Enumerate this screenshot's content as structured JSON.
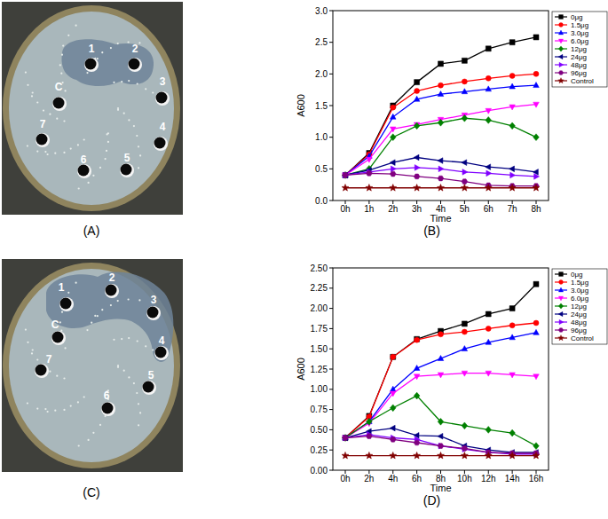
{
  "chart_data": [
    {
      "type": "line",
      "title": "(B)",
      "x_label": "Time",
      "y_label": "A600",
      "categories": [
        "0h",
        "1h",
        "2h",
        "3h",
        "4h",
        "5h",
        "6h",
        "7h",
        "8h"
      ],
      "ylim": [
        0,
        3
      ],
      "yticks": [
        {
          "value": 0,
          "label": "0.0"
        },
        {
          "value": 0.5,
          "label": "0.5"
        },
        {
          "value": 1,
          "label": "1.0"
        },
        {
          "value": 1.5,
          "label": "1.5"
        },
        {
          "value": 2,
          "label": "2.0"
        },
        {
          "value": 2.5,
          "label": "2.5"
        },
        {
          "value": 3,
          "label": "3.0"
        }
      ],
      "legend": "right",
      "series": [
        {
          "name": "0μg",
          "color": "#000000",
          "marker": "square",
          "values": [
            0.4,
            0.75,
            1.5,
            1.87,
            2.16,
            2.21,
            2.4,
            2.5,
            2.58
          ]
        },
        {
          "name": "1.5μg",
          "color": "#ff0000",
          "marker": "circle",
          "values": [
            0.4,
            0.73,
            1.47,
            1.73,
            1.82,
            1.88,
            1.93,
            1.97,
            2.0
          ]
        },
        {
          "name": "3.0μg",
          "color": "#0000ff",
          "marker": "triangle-up",
          "values": [
            0.4,
            0.7,
            1.32,
            1.6,
            1.68,
            1.72,
            1.76,
            1.8,
            1.82
          ]
        },
        {
          "name": "6.0μg",
          "color": "#ff00ff",
          "marker": "triangle-down",
          "values": [
            0.4,
            0.65,
            1.13,
            1.2,
            1.28,
            1.35,
            1.42,
            1.48,
            1.52
          ]
        },
        {
          "name": "12μg",
          "color": "#008000",
          "marker": "diamond",
          "values": [
            0.4,
            0.5,
            1.0,
            1.18,
            1.23,
            1.3,
            1.27,
            1.18,
            1.0
          ]
        },
        {
          "name": "24μg",
          "color": "#000080",
          "marker": "triangle-left",
          "values": [
            0.4,
            0.48,
            0.6,
            0.68,
            0.63,
            0.6,
            0.53,
            0.5,
            0.45
          ]
        },
        {
          "name": "48μg",
          "color": "#8000ff",
          "marker": "triangle-right",
          "values": [
            0.4,
            0.45,
            0.5,
            0.52,
            0.5,
            0.45,
            0.43,
            0.4,
            0.38
          ]
        },
        {
          "name": "96μg",
          "color": "#800080",
          "marker": "hexagon",
          "values": [
            0.4,
            0.43,
            0.42,
            0.38,
            0.35,
            0.3,
            0.24,
            0.23,
            0.23
          ]
        },
        {
          "name": "Control",
          "color": "#800000",
          "marker": "star",
          "values": [
            0.2,
            0.2,
            0.2,
            0.2,
            0.2,
            0.2,
            0.2,
            0.2,
            0.2
          ]
        }
      ]
    },
    {
      "type": "line",
      "title": "(D)",
      "x_label": "Time",
      "y_label": "A600",
      "categories": [
        "0h",
        "2h",
        "4h",
        "6h",
        "8h",
        "10h",
        "12h",
        "14h",
        "16h"
      ],
      "ylim": [
        0,
        2.5
      ],
      "yticks": [
        {
          "value": 0,
          "label": "0.00"
        },
        {
          "value": 0.25,
          "label": "0.25"
        },
        {
          "value": 0.5,
          "label": "0.50"
        },
        {
          "value": 0.75,
          "label": "0.75"
        },
        {
          "value": 1,
          "label": "1.00"
        },
        {
          "value": 1.25,
          "label": "1.25"
        },
        {
          "value": 1.5,
          "label": "1.50"
        },
        {
          "value": 1.75,
          "label": "1.75"
        },
        {
          "value": 2,
          "label": "2.00"
        },
        {
          "value": 2.25,
          "label": "2.25"
        },
        {
          "value": 2.5,
          "label": "2.50"
        }
      ],
      "legend": "right",
      "series": [
        {
          "name": "0μg",
          "color": "#000000",
          "marker": "square",
          "values": [
            0.4,
            0.67,
            1.4,
            1.62,
            1.72,
            1.81,
            1.93,
            2.0,
            2.3
          ]
        },
        {
          "name": "1.5μg",
          "color": "#ff0000",
          "marker": "circle",
          "values": [
            0.4,
            0.66,
            1.4,
            1.61,
            1.68,
            1.71,
            1.75,
            1.79,
            1.82
          ]
        },
        {
          "name": "3.0μg",
          "color": "#0000ff",
          "marker": "triangle-up",
          "values": [
            0.4,
            0.6,
            1.0,
            1.26,
            1.38,
            1.5,
            1.58,
            1.64,
            1.7
          ]
        },
        {
          "name": "6.0μg",
          "color": "#ff00ff",
          "marker": "triangle-down",
          "values": [
            0.4,
            0.58,
            0.95,
            1.16,
            1.18,
            1.2,
            1.2,
            1.18,
            1.16
          ]
        },
        {
          "name": "12μg",
          "color": "#008000",
          "marker": "diamond",
          "values": [
            0.4,
            0.6,
            0.77,
            0.92,
            0.6,
            0.55,
            0.5,
            0.46,
            0.3
          ]
        },
        {
          "name": "24μg",
          "color": "#000080",
          "marker": "triangle-left",
          "values": [
            0.4,
            0.48,
            0.52,
            0.43,
            0.42,
            0.3,
            0.25,
            0.22,
            0.22
          ]
        },
        {
          "name": "48μg",
          "color": "#8000ff",
          "marker": "triangle-right",
          "values": [
            0.4,
            0.44,
            0.4,
            0.38,
            0.3,
            0.26,
            0.22,
            0.2,
            0.2
          ]
        },
        {
          "name": "96μg",
          "color": "#800080",
          "marker": "hexagon",
          "values": [
            0.4,
            0.42,
            0.38,
            0.34,
            0.3,
            0.27,
            0.22,
            0.21,
            0.21
          ]
        },
        {
          "name": "Control",
          "color": "#800000",
          "marker": "star",
          "values": [
            0.18,
            0.18,
            0.18,
            0.18,
            0.18,
            0.18,
            0.18,
            0.18,
            0.18
          ]
        }
      ]
    }
  ],
  "plates": [
    {
      "label": "(A)",
      "wells": [
        "1",
        "2",
        "3",
        "C",
        "4",
        "5",
        "6",
        "7"
      ]
    },
    {
      "label": "(C)",
      "wells": [
        "1",
        "2",
        "3",
        "C",
        "4",
        "5",
        "6",
        "7"
      ]
    }
  ]
}
